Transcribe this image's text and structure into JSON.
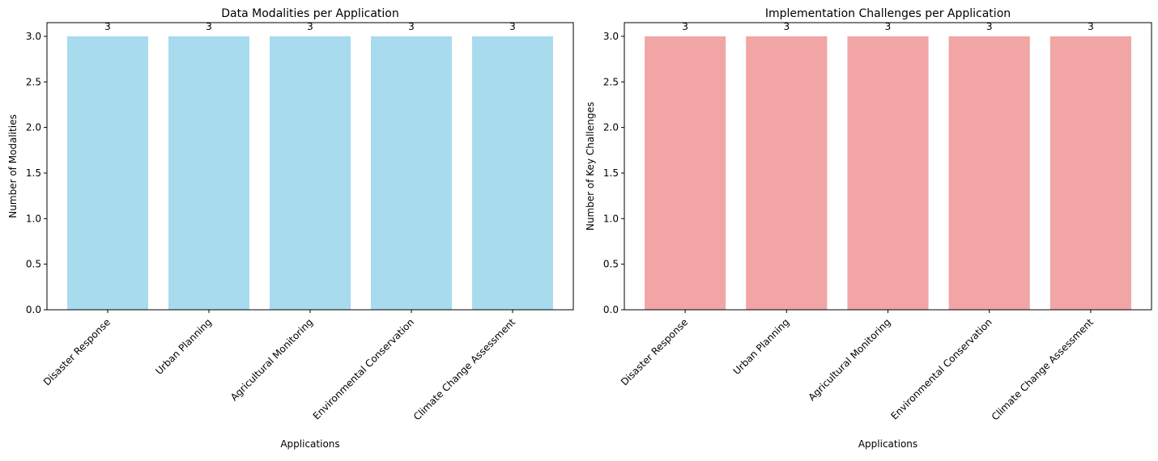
{
  "chart_data": [
    {
      "type": "bar",
      "title": "Data Modalities per Application",
      "xlabel": "Applications",
      "ylabel": "Number of Modalities",
      "categories": [
        "Disaster Response",
        "Urban Planning",
        "Agricultural Monitoring",
        "Environmental Conservation",
        "Climate Change Assessment"
      ],
      "values": [
        3,
        3,
        3,
        3,
        3
      ],
      "data_labels": [
        "3",
        "3",
        "3",
        "3",
        "3"
      ],
      "yticks": [
        "0.0",
        "0.5",
        "1.0",
        "1.5",
        "2.0",
        "2.5",
        "3.0"
      ],
      "ylim": [
        0,
        3.15
      ],
      "bar_color": "#a8dbee",
      "grid": false,
      "legend": "none"
    },
    {
      "type": "bar",
      "title": "Implementation Challenges per Application",
      "xlabel": "Applications",
      "ylabel": "Number of Key Challenges",
      "categories": [
        "Disaster Response",
        "Urban Planning",
        "Agricultural Monitoring",
        "Environmental Conservation",
        "Climate Change Assessment"
      ],
      "values": [
        3,
        3,
        3,
        3,
        3
      ],
      "data_labels": [
        "3",
        "3",
        "3",
        "3",
        "3"
      ],
      "yticks": [
        "0.0",
        "0.5",
        "1.0",
        "1.5",
        "2.0",
        "2.5",
        "3.0"
      ],
      "ylim": [
        0,
        3.15
      ],
      "bar_color": "#f2a5a5",
      "grid": false,
      "legend": "none"
    }
  ]
}
